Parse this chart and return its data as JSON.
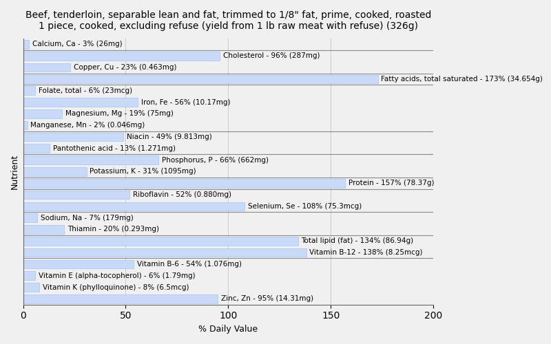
{
  "title": "Beef, tenderloin, separable lean and fat, trimmed to 1/8\" fat, prime, cooked, roasted\n1 piece, cooked, excluding refuse (yield from 1 lb raw meat with refuse) (326g)",
  "xlabel": "% Daily Value",
  "ylabel": "Nutrient",
  "xlim": [
    0,
    200
  ],
  "xticks": [
    0,
    50,
    100,
    150,
    200
  ],
  "bar_color": "#c9daf8",
  "bar_edge_color": "#a4c2f4",
  "background_color": "#f0f0f0",
  "nutrients": [
    {
      "label": "Calcium, Ca - 3% (26mg)",
      "value": 3
    },
    {
      "label": "Cholesterol - 96% (287mg)",
      "value": 96
    },
    {
      "label": "Copper, Cu - 23% (0.463mg)",
      "value": 23
    },
    {
      "label": "Fatty acids, total saturated - 173% (34.654g)",
      "value": 173
    },
    {
      "label": "Folate, total - 6% (23mcg)",
      "value": 6
    },
    {
      "label": "Iron, Fe - 56% (10.17mg)",
      "value": 56
    },
    {
      "label": "Magnesium, Mg - 19% (75mg)",
      "value": 19
    },
    {
      "label": "Manganese, Mn - 2% (0.046mg)",
      "value": 2
    },
    {
      "label": "Niacin - 49% (9.813mg)",
      "value": 49
    },
    {
      "label": "Pantothenic acid - 13% (1.271mg)",
      "value": 13
    },
    {
      "label": "Phosphorus, P - 66% (662mg)",
      "value": 66
    },
    {
      "label": "Potassium, K - 31% (1095mg)",
      "value": 31
    },
    {
      "label": "Protein - 157% (78.37g)",
      "value": 157
    },
    {
      "label": "Riboflavin - 52% (0.880mg)",
      "value": 52
    },
    {
      "label": "Selenium, Se - 108% (75.3mcg)",
      "value": 108
    },
    {
      "label": "Sodium, Na - 7% (179mg)",
      "value": 7
    },
    {
      "label": "Thiamin - 20% (0.293mg)",
      "value": 20
    },
    {
      "label": "Total lipid (fat) - 134% (86.94g)",
      "value": 134
    },
    {
      "label": "Vitamin B-12 - 138% (8.25mcg)",
      "value": 138
    },
    {
      "label": "Vitamin B-6 - 54% (1.076mg)",
      "value": 54
    },
    {
      "label": "Vitamin E (alpha-tocopherol) - 6% (1.79mg)",
      "value": 6
    },
    {
      "label": "Vitamin K (phylloquinone) - 8% (6.5mcg)",
      "value": 8
    },
    {
      "label": "Zinc, Zn - 95% (14.31mg)",
      "value": 95
    }
  ],
  "separator_after": [
    0,
    2,
    3,
    7,
    9,
    11,
    12,
    14,
    16,
    18
  ],
  "title_fontsize": 10,
  "label_fontsize": 7.5,
  "axis_fontsize": 9
}
